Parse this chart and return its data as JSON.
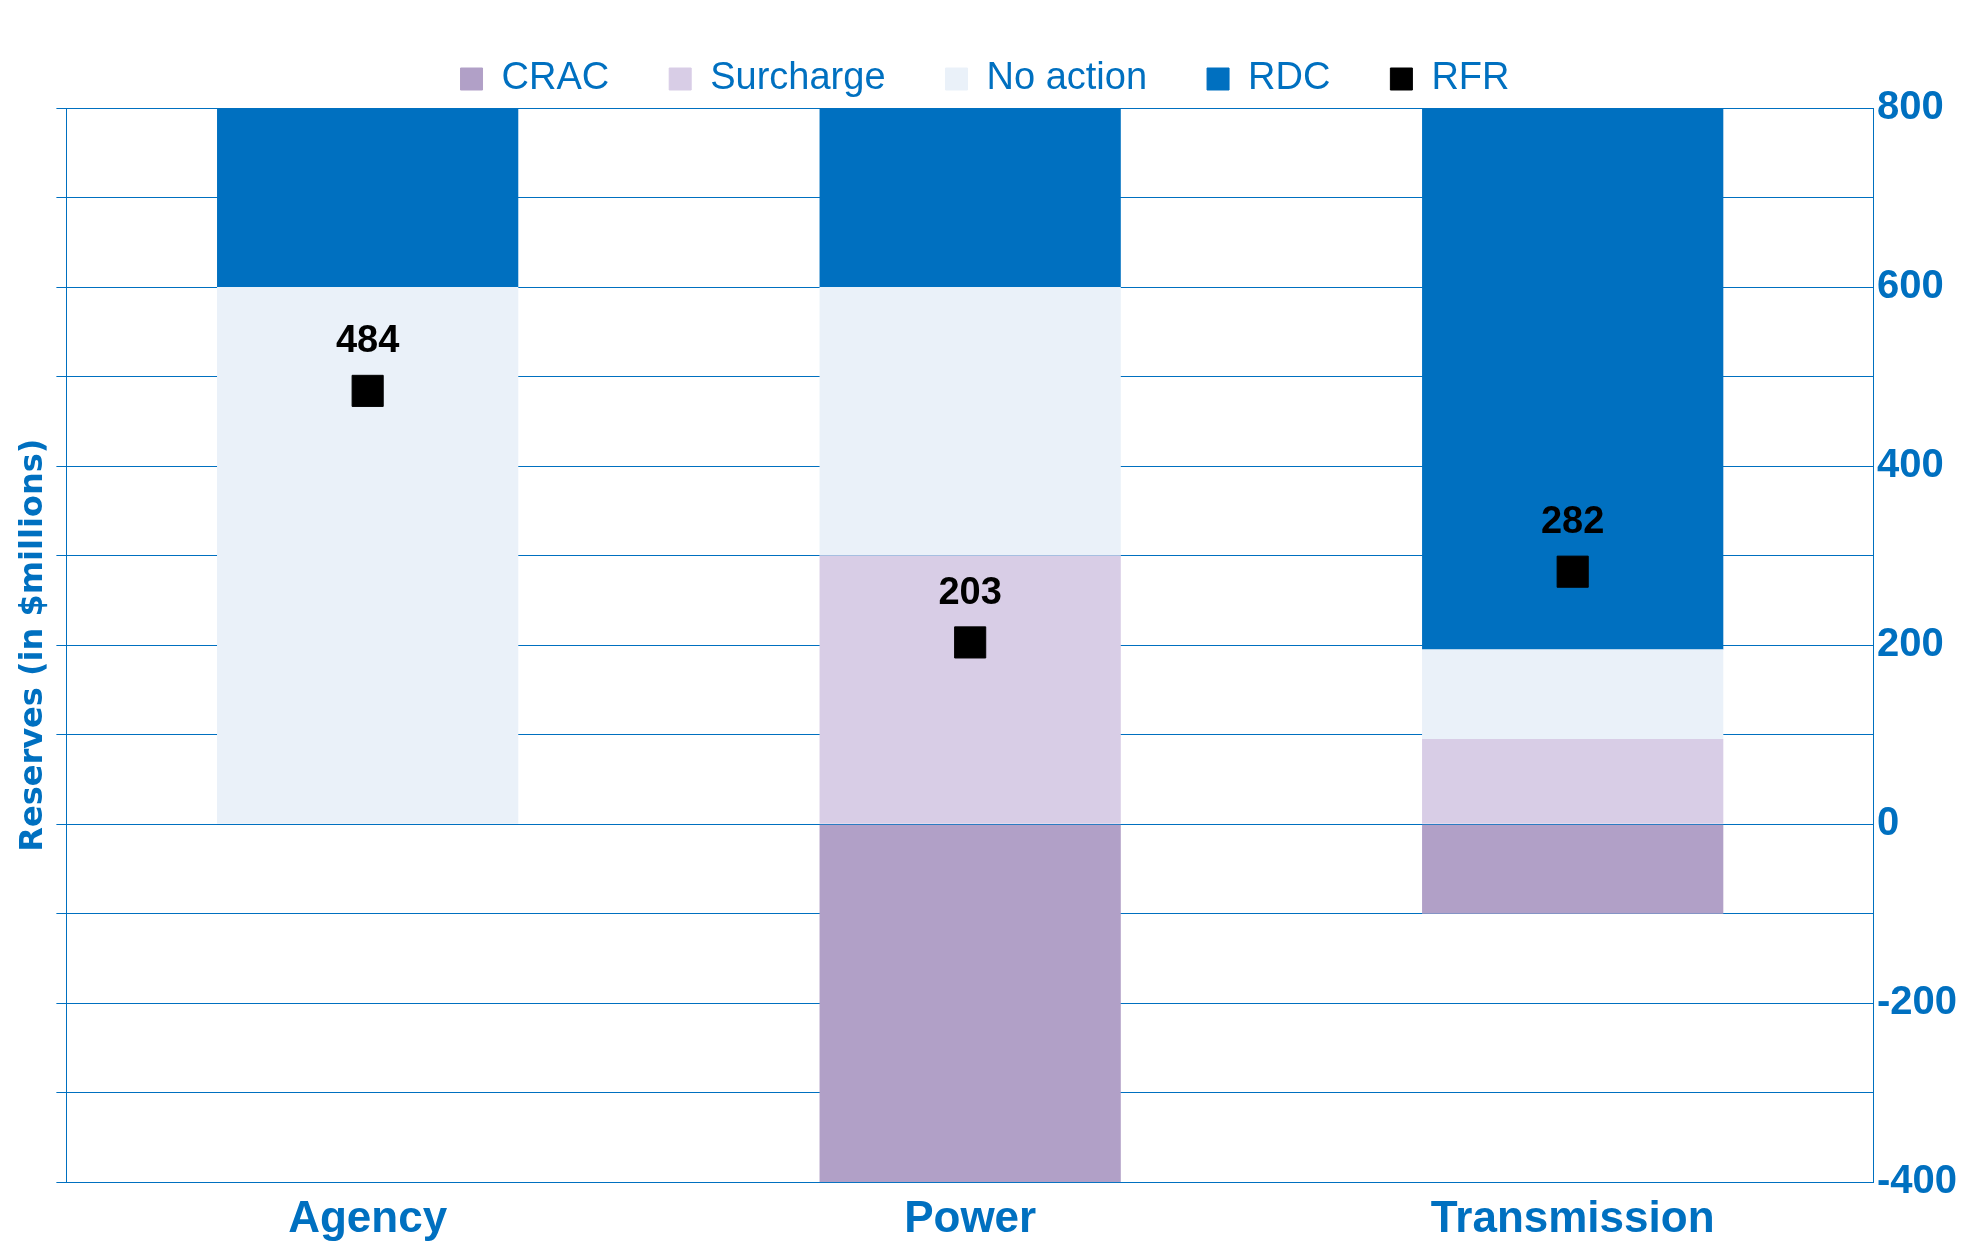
{
  "chart_data": {
    "type": "bar",
    "stacked": true,
    "ylabel": "Reserves (in $millions)",
    "categories": [
      "Agency",
      "Power",
      "Transmission"
    ],
    "series": [
      {
        "name": "CRAC",
        "color": "#b1a0c7",
        "values": [
          0,
          -400,
          -100
        ]
      },
      {
        "name": "Surcharge",
        "color": "#d8cde6",
        "values": [
          0,
          300,
          95
        ]
      },
      {
        "name": "No action",
        "color": "#eaf1f9",
        "values": [
          600,
          300,
          100
        ]
      },
      {
        "name": "RDC",
        "color": "#0070c0",
        "values": [
          200,
          200,
          605
        ]
      },
      {
        "name": "RFR",
        "type": "scatter",
        "color": "#000000",
        "x": [
          "Agency",
          "Power",
          "Transmission"
        ],
        "values": [
          484,
          203,
          282
        ],
        "value_labels": [
          "484",
          "203",
          "282"
        ]
      }
    ],
    "ylim": [
      -400,
      800
    ],
    "yticks": [
      -400,
      {
        "value": -300,
        "label": null
      },
      -200,
      {
        "value": -100,
        "label": null
      },
      0,
      {
        "value": 100,
        "label": null
      },
      200,
      {
        "value": 300,
        "label": null
      },
      400,
      {
        "value": 500,
        "label": null
      },
      600,
      {
        "value": 700,
        "label": null
      },
      800
    ],
    "grid": "y",
    "legend": "top",
    "marker": "square"
  }
}
